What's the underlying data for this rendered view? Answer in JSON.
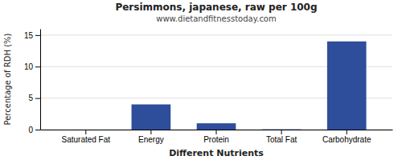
{
  "chart_data": {
    "type": "bar",
    "title": "Persimmons, japanese, raw per 100g",
    "subtitle": "www.dietandfitnesstoday.com",
    "xlabel": "Different Nutrients",
    "ylabel": "Percentage of RDH (%)",
    "categories": [
      "Saturated Fat",
      "Energy",
      "Protein",
      "Total Fat",
      "Carbohydrate"
    ],
    "values": [
      0.0,
      4.0,
      1.0,
      0.05,
      14.0
    ],
    "color": "#2e4d9b",
    "ylim": [
      0,
      16
    ],
    "yticks": [
      0,
      5,
      10,
      15
    ],
    "grid": true
  }
}
